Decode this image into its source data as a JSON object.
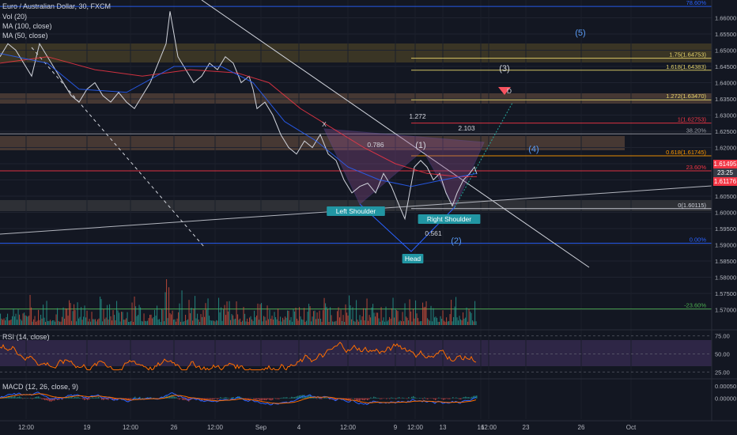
{
  "chart_data": {
    "type": "line",
    "title": "Euro / Australian Dollar, 30, FXCM",
    "legend": [
      "Vol (20)",
      "MA (100, close)",
      "MA (50, close)"
    ],
    "xlabel": "",
    "ylabel": "",
    "ylim": [
      1.565,
      1.665
    ],
    "y_ticks": [
      "1.66000",
      "1.65500",
      "1.65000",
      "1.64500",
      "1.64000",
      "1.63500",
      "1.63000",
      "1.62500",
      "1.62000",
      "1.61500",
      "1.61000",
      "1.60500",
      "1.60000",
      "1.59500",
      "1.59000",
      "1.58500",
      "1.58000",
      "1.57500",
      "1.57000"
    ],
    "x_ticks": [
      "12:00",
      "19",
      "12:00",
      "26",
      "12:00",
      "Sep",
      "4",
      "12:00",
      "9",
      "12:00",
      "13",
      "16",
      "12:00",
      "23",
      "26",
      "Oct"
    ],
    "price_labels": {
      "high": "1.61495",
      "countdown": "23:25",
      "current": "1.61176"
    },
    "series": [
      {
        "name": "Euro / Australian Dollar",
        "points": [
          [
            0,
            1.648
          ],
          [
            10,
            1.652
          ],
          [
            20,
            1.65
          ],
          [
            30,
            1.646
          ],
          [
            40,
            1.642
          ],
          [
            50,
            1.652
          ],
          [
            60,
            1.648
          ],
          [
            70,
            1.644
          ],
          [
            80,
            1.64
          ],
          [
            90,
            1.636
          ],
          [
            100,
            1.634
          ],
          [
            110,
            1.638
          ],
          [
            120,
            1.64
          ],
          [
            130,
            1.636
          ],
          [
            140,
            1.634
          ],
          [
            150,
            1.637
          ],
          [
            160,
            1.634
          ],
          [
            170,
            1.632
          ],
          [
            180,
            1.636
          ],
          [
            190,
            1.64
          ],
          [
            200,
            1.646
          ],
          [
            210,
            1.652
          ],
          [
            215,
            1.662
          ],
          [
            220,
            1.655
          ],
          [
            225,
            1.648
          ],
          [
            235,
            1.644
          ],
          [
            245,
            1.64
          ],
          [
            255,
            1.642
          ],
          [
            265,
            1.646
          ],
          [
            275,
            1.644
          ],
          [
            285,
            1.648
          ],
          [
            295,
            1.646
          ],
          [
            305,
            1.64
          ],
          [
            315,
            1.642
          ],
          [
            320,
            1.638
          ],
          [
            325,
            1.632
          ],
          [
            335,
            1.634
          ],
          [
            345,
            1.63
          ],
          [
            355,
            1.624
          ],
          [
            365,
            1.62
          ],
          [
            375,
            1.618
          ],
          [
            385,
            1.622
          ],
          [
            395,
            1.62
          ],
          [
            405,
            1.624
          ],
          [
            415,
            1.618
          ],
          [
            425,
            1.616
          ],
          [
            435,
            1.61
          ],
          [
            445,
            1.606
          ],
          [
            455,
            1.608
          ],
          [
            465,
            1.609
          ],
          [
            475,
            1.606
          ],
          [
            485,
            1.612
          ],
          [
            495,
            1.608
          ],
          [
            505,
            1.602
          ],
          [
            512,
            1.598
          ],
          [
            518,
            1.606
          ],
          [
            524,
            1.614
          ],
          [
            532,
            1.616
          ],
          [
            540,
            1.614
          ],
          [
            548,
            1.61
          ],
          [
            556,
            1.612
          ],
          [
            564,
            1.606
          ],
          [
            572,
            1.602
          ],
          [
            578,
            1.606
          ],
          [
            586,
            1.61
          ],
          [
            594,
            1.612
          ],
          [
            600,
            1.614
          ],
          [
            603,
            1.6118
          ]
        ]
      },
      {
        "name": "MA (100, close)",
        "points": [
          [
            0,
            1.646
          ],
          [
            60,
            1.648
          ],
          [
            120,
            1.644
          ],
          [
            180,
            1.642
          ],
          [
            240,
            1.644
          ],
          [
            300,
            1.643
          ],
          [
            340,
            1.64
          ],
          [
            380,
            1.632
          ],
          [
            420,
            1.626
          ],
          [
            460,
            1.62
          ],
          [
            500,
            1.615
          ],
          [
            540,
            1.612
          ],
          [
            580,
            1.611
          ],
          [
            603,
            1.611
          ]
        ]
      },
      {
        "name": "MA (50, close)",
        "points": [
          [
            0,
            1.649
          ],
          [
            60,
            1.646
          ],
          [
            100,
            1.638
          ],
          [
            160,
            1.637
          ],
          [
            220,
            1.645
          ],
          [
            280,
            1.645
          ],
          [
            320,
            1.64
          ],
          [
            360,
            1.628
          ],
          [
            400,
            1.622
          ],
          [
            440,
            1.614
          ],
          [
            480,
            1.61
          ],
          [
            520,
            1.608
          ],
          [
            560,
            1.61
          ],
          [
            603,
            1.612
          ]
        ]
      }
    ],
    "levels": [
      {
        "label": "78.60%",
        "y": 1.6635,
        "color": "#2962ff"
      },
      {
        "label": "1.75(1.64753)",
        "y": 1.64753,
        "color": "#e6d56b"
      },
      {
        "label": "1.618(1.64383)",
        "y": 1.64383,
        "color": "#e6d56b"
      },
      {
        "label": "1.272(1.63470)",
        "y": 1.6347,
        "color": "#e6d56b"
      },
      {
        "label": "1(1.62753)",
        "y": 1.62753,
        "color": "#f23645"
      },
      {
        "label": "38.20%",
        "y": 1.6242,
        "color": "#9598a1"
      },
      {
        "label": "0.618(1.61745)",
        "y": 1.61745,
        "color": "#ff9800"
      },
      {
        "label": "23.60%",
        "y": 1.6128,
        "color": "#f23645"
      },
      {
        "label": "0(1.60115)",
        "y": 1.60115,
        "color": "#d1d4dc"
      },
      {
        "label": "0.00%",
        "y": 1.5905,
        "color": "#2962ff"
      },
      {
        "label": "-23.60%",
        "y": 1.5702,
        "color": "#4caf50"
      }
    ],
    "pattern_labels": [
      "X",
      "Left Shoulder",
      "Head",
      "Right Shoulder",
      "0.786",
      "1.272",
      "2.103",
      "0.561",
      "D",
      "(1)",
      "(2)",
      "(3)",
      "(4)",
      "(5)"
    ],
    "rsi": {
      "title": "RSI (14, close)",
      "ticks": [
        "75.00",
        "50.00",
        "25.00"
      ],
      "ylim": [
        20,
        80
      ]
    },
    "macd": {
      "title": "MACD (12, 26, close, 9)",
      "ticks": [
        "0.00050",
        "0.00000"
      ],
      "ylim": [
        -0.0008,
        0.0007
      ]
    }
  }
}
